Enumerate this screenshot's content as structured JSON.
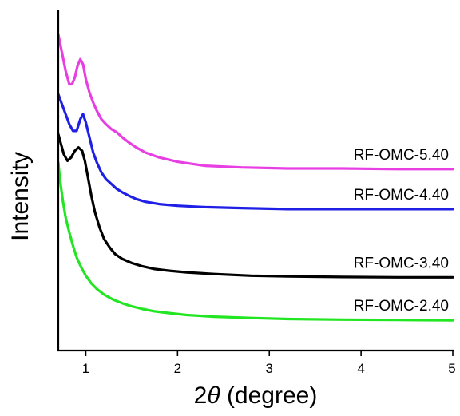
{
  "chart_data": {
    "type": "line",
    "title": "",
    "xlabel_prefix": "2",
    "xlabel_symbol": "θ",
    "xlabel_suffix": " (degree)",
    "ylabel": "Intensity",
    "xlim": [
      0.7,
      5
    ],
    "ylim": [
      0,
      10
    ],
    "xticks": [
      "1",
      "2",
      "3",
      "4",
      "5"
    ],
    "yticks": [],
    "grid": false,
    "legend": "inline-right",
    "series": [
      {
        "name": "RF-OMC-5.40",
        "color": "#e83fe3",
        "x": [
          0.7,
          0.74,
          0.78,
          0.82,
          0.85,
          0.88,
          0.91,
          0.94,
          0.97,
          1.0,
          1.04,
          1.08,
          1.12,
          1.17,
          1.22,
          1.28,
          1.34,
          1.4,
          1.47,
          1.55,
          1.65,
          1.8,
          2.0,
          2.3,
          2.7,
          3.2,
          3.8,
          4.4,
          5.0
        ],
        "y": [
          9.45,
          8.9,
          8.35,
          7.95,
          7.95,
          8.15,
          8.5,
          8.7,
          8.55,
          8.1,
          7.7,
          7.4,
          7.15,
          6.9,
          6.75,
          6.6,
          6.5,
          6.35,
          6.2,
          6.05,
          5.9,
          5.75,
          5.62,
          5.5,
          5.45,
          5.42,
          5.42,
          5.4,
          5.4
        ]
      },
      {
        "name": "RF-OMC-4.40",
        "color": "#1f1fe6",
        "x": [
          0.7,
          0.74,
          0.78,
          0.82,
          0.86,
          0.9,
          0.94,
          0.97,
          1.0,
          1.04,
          1.08,
          1.12,
          1.17,
          1.22,
          1.28,
          1.34,
          1.4,
          1.47,
          1.55,
          1.65,
          1.8,
          2.0,
          2.3,
          2.7,
          3.2,
          3.8,
          4.4,
          5.0
        ],
        "y": [
          7.65,
          7.35,
          7.05,
          6.75,
          6.55,
          6.55,
          6.9,
          7.05,
          6.8,
          6.35,
          5.9,
          5.6,
          5.3,
          5.1,
          4.95,
          4.8,
          4.7,
          4.6,
          4.5,
          4.42,
          4.35,
          4.3,
          4.26,
          4.23,
          4.2,
          4.2,
          4.2,
          4.2
        ]
      },
      {
        "name": "RF-OMC-3.40",
        "color": "#000000",
        "x": [
          0.7,
          0.73,
          0.76,
          0.8,
          0.84,
          0.88,
          0.92,
          0.96,
          0.99,
          1.02,
          1.06,
          1.1,
          1.15,
          1.2,
          1.26,
          1.32,
          1.4,
          1.5,
          1.62,
          1.75,
          1.9,
          2.1,
          2.4,
          2.8,
          3.2,
          3.8,
          4.4,
          5.0
        ],
        "y": [
          6.45,
          6.15,
          5.85,
          5.65,
          5.75,
          5.95,
          6.05,
          5.95,
          5.65,
          5.2,
          4.6,
          4.1,
          3.65,
          3.3,
          3.05,
          2.85,
          2.7,
          2.58,
          2.48,
          2.4,
          2.35,
          2.3,
          2.25,
          2.2,
          2.18,
          2.16,
          2.15,
          2.15
        ]
      },
      {
        "name": "RF-OMC-2.40",
        "color": "#22e622",
        "x": [
          0.7,
          0.72,
          0.75,
          0.78,
          0.82,
          0.86,
          0.9,
          0.95,
          1.0,
          1.06,
          1.12,
          1.2,
          1.3,
          1.4,
          1.5,
          1.62,
          1.75,
          1.9,
          2.1,
          2.4,
          2.8,
          3.2,
          3.8,
          4.4,
          5.0
        ],
        "y": [
          5.6,
          5.05,
          4.45,
          3.95,
          3.5,
          3.1,
          2.75,
          2.45,
          2.2,
          1.97,
          1.8,
          1.63,
          1.48,
          1.37,
          1.28,
          1.2,
          1.13,
          1.08,
          1.02,
          0.97,
          0.93,
          0.9,
          0.88,
          0.87,
          0.86
        ]
      }
    ]
  }
}
